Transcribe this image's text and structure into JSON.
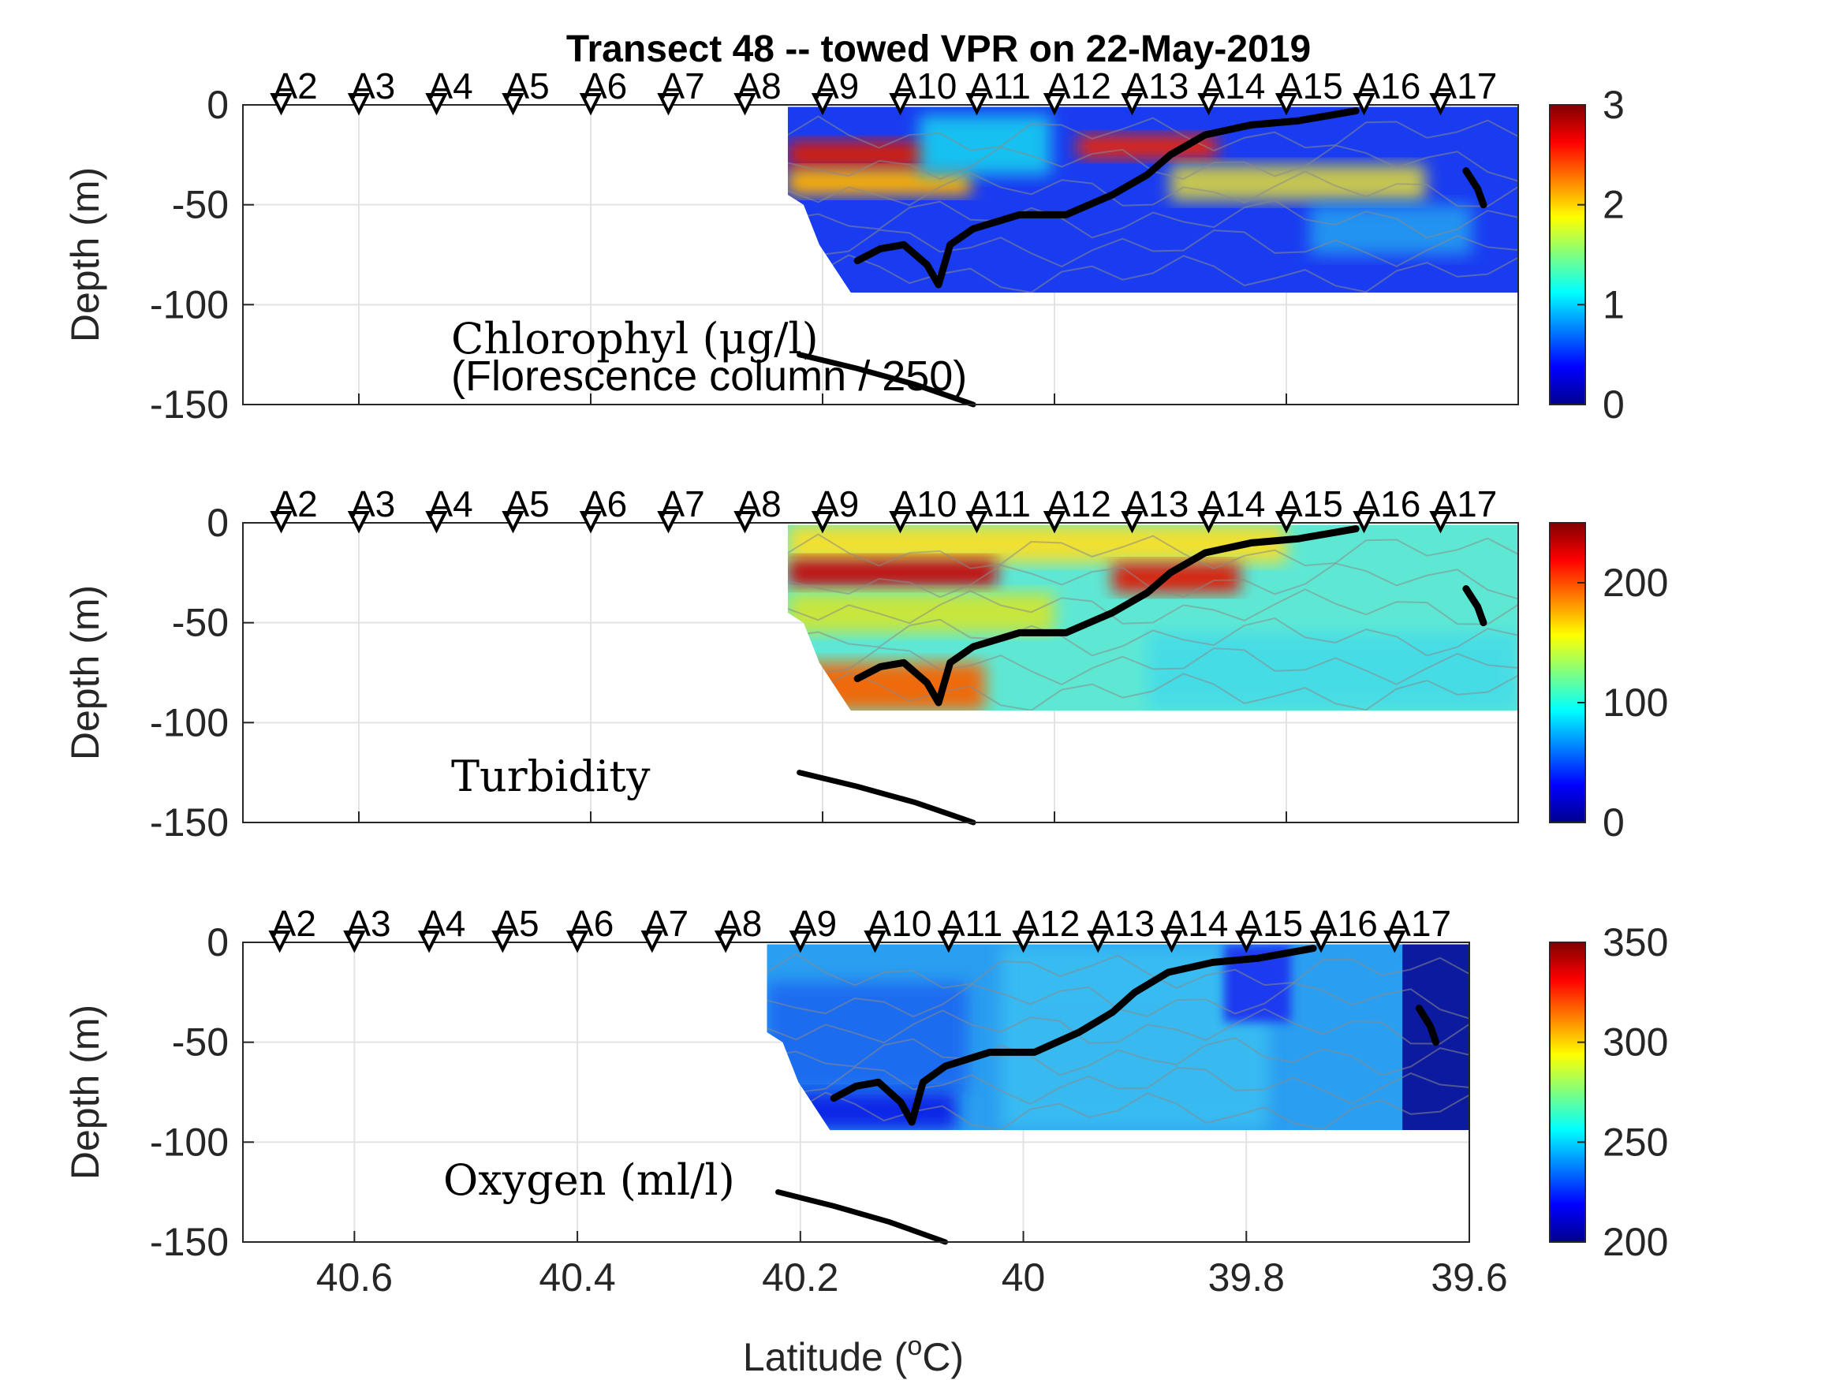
{
  "chart_data": {
    "type": "heatmap",
    "title": "Transect 48 -- towed VPR on 22-May-2019",
    "xlabel": "Latitude (",
    "xlabel_sup": "o",
    "xlabel_suffix": "C)",
    "xlim": [
      40.7,
      39.6
    ],
    "x_ticks": [
      "40.6",
      "40.4",
      "40.2",
      "40",
      "39.8",
      "39.6"
    ],
    "x_tick_values": [
      40.6,
      40.4,
      40.2,
      40.0,
      39.8,
      39.6
    ],
    "colormap": "jet",
    "grid": true,
    "stations": {
      "labels": [
        "A2",
        "A3",
        "A4",
        "A5",
        "A6",
        "A7",
        "A8",
        "A9",
        "A10",
        "A11",
        "A12",
        "A13",
        "A14",
        "A15",
        "A16",
        "A17"
      ],
      "latitudes": [
        40.667,
        40.6,
        40.533,
        40.467,
        40.4,
        40.333,
        40.267,
        40.2,
        40.133,
        40.067,
        40.0,
        39.933,
        39.867,
        39.8,
        39.733,
        39.667
      ]
    },
    "panels": [
      {
        "ylabel": "Depth (m)",
        "ylim": [
          -150,
          0
        ],
        "y_ticks": [
          "0",
          "-50",
          "-100",
          "-150"
        ],
        "y_tick_values": [
          0,
          -50,
          -100,
          -150
        ],
        "annotation": "Chlorophyl (μg/l)",
        "annotation2": "(Florescence column / 250)",
        "colorbar_ticks": [
          "3",
          "2",
          "1",
          "0"
        ],
        "colorbar_tick_values": [
          3,
          2,
          1,
          0
        ],
        "clim": [
          0,
          3
        ],
        "data_lat_range": [
          40.23,
          39.6
        ],
        "data_depth_bottom": -94,
        "tow_depth": [
          [
            40.17,
            -78
          ],
          [
            40.15,
            -72
          ],
          [
            40.13,
            -70
          ],
          [
            40.11,
            -80
          ],
          [
            40.1,
            -90
          ],
          [
            40.09,
            -70
          ],
          [
            40.07,
            -62
          ],
          [
            40.03,
            -55
          ],
          [
            39.99,
            -55
          ],
          [
            39.95,
            -45
          ],
          [
            39.92,
            -35
          ],
          [
            39.9,
            -25
          ],
          [
            39.87,
            -15
          ],
          [
            39.83,
            -10
          ],
          [
            39.79,
            -8
          ],
          [
            39.76,
            -5
          ],
          [
            39.74,
            -3
          ]
        ],
        "column_profile": [
          [
            40.22,
            -125
          ],
          [
            40.17,
            -132
          ],
          [
            40.12,
            -140
          ],
          [
            40.09,
            -146
          ],
          [
            40.07,
            -150
          ]
        ]
      },
      {
        "ylabel": "Depth (m)",
        "ylim": [
          -150,
          0
        ],
        "y_ticks": [
          "0",
          "-50",
          "-100",
          "-150"
        ],
        "y_tick_values": [
          0,
          -50,
          -100,
          -150
        ],
        "annotation": "Turbidity",
        "colorbar_ticks": [
          "200",
          "100",
          "0"
        ],
        "colorbar_tick_values": [
          200,
          100,
          0
        ],
        "clim": [
          0,
          250
        ],
        "data_lat_range": [
          40.23,
          39.6
        ],
        "data_depth_bottom": -94,
        "tow_depth": [
          [
            40.17,
            -78
          ],
          [
            40.15,
            -72
          ],
          [
            40.13,
            -70
          ],
          [
            40.11,
            -80
          ],
          [
            40.1,
            -90
          ],
          [
            40.09,
            -70
          ],
          [
            40.07,
            -62
          ],
          [
            40.03,
            -55
          ],
          [
            39.99,
            -55
          ],
          [
            39.95,
            -45
          ],
          [
            39.92,
            -35
          ],
          [
            39.9,
            -25
          ],
          [
            39.87,
            -15
          ],
          [
            39.83,
            -10
          ],
          [
            39.79,
            -8
          ],
          [
            39.76,
            -5
          ],
          [
            39.74,
            -3
          ]
        ],
        "column_profile": [
          [
            40.22,
            -125
          ],
          [
            40.17,
            -132
          ],
          [
            40.12,
            -140
          ],
          [
            40.09,
            -146
          ],
          [
            40.07,
            -150
          ]
        ]
      },
      {
        "ylabel": "Depth (m)",
        "ylim": [
          -150,
          0
        ],
        "y_ticks": [
          "0",
          "-50",
          "-100",
          "-150"
        ],
        "y_tick_values": [
          0,
          -50,
          -100,
          -150
        ],
        "annotation": "Oxygen (ml/l)",
        "colorbar_ticks": [
          "350",
          "300",
          "250",
          "200"
        ],
        "colorbar_tick_values": [
          350,
          300,
          250,
          200
        ],
        "clim": [
          200,
          350
        ],
        "data_lat_range": [
          40.23,
          39.6
        ],
        "data_depth_bottom": -94,
        "tow_depth": [
          [
            40.17,
            -78
          ],
          [
            40.15,
            -72
          ],
          [
            40.13,
            -70
          ],
          [
            40.11,
            -80
          ],
          [
            40.1,
            -90
          ],
          [
            40.09,
            -70
          ],
          [
            40.07,
            -62
          ],
          [
            40.03,
            -55
          ],
          [
            39.99,
            -55
          ],
          [
            39.95,
            -45
          ],
          [
            39.92,
            -35
          ],
          [
            39.9,
            -25
          ],
          [
            39.87,
            -15
          ],
          [
            39.83,
            -10
          ],
          [
            39.79,
            -8
          ],
          [
            39.76,
            -5
          ],
          [
            39.74,
            -3
          ]
        ],
        "column_profile": [
          [
            40.22,
            -125
          ],
          [
            40.17,
            -132
          ],
          [
            40.12,
            -140
          ],
          [
            40.09,
            -146
          ],
          [
            40.07,
            -150
          ]
        ]
      }
    ]
  }
}
